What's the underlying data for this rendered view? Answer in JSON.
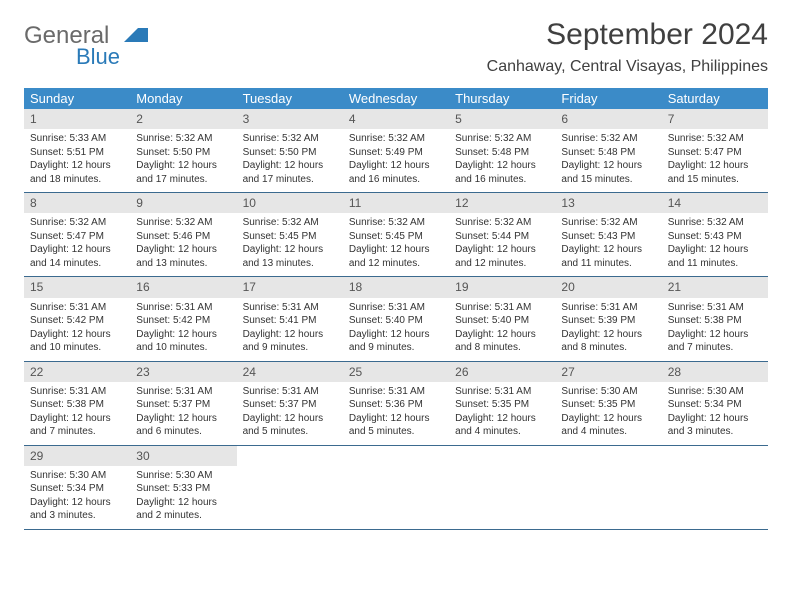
{
  "logo": {
    "text1": "General",
    "text2": "Blue"
  },
  "title": "September 2024",
  "location": "Canhaway, Central Visayas, Philippines",
  "colors": {
    "header_bg": "#3b8bc8",
    "header_fg": "#ffffff",
    "daynum_bg": "#e6e6e6",
    "row_border": "#3b6a8f",
    "text": "#333333",
    "logo_gray": "#6a6a6a",
    "logo_blue": "#2a7ab8"
  },
  "typography": {
    "title_fontsize": 30,
    "location_fontsize": 16,
    "dayheader_fontsize": 13,
    "cell_fontsize": 10,
    "daynum_fontsize": 12
  },
  "day_names": [
    "Sunday",
    "Monday",
    "Tuesday",
    "Wednesday",
    "Thursday",
    "Friday",
    "Saturday"
  ],
  "weeks": [
    [
      {
        "num": "1",
        "sunrise": "Sunrise: 5:33 AM",
        "sunset": "Sunset: 5:51 PM",
        "daylight": "Daylight: 12 hours and 18 minutes."
      },
      {
        "num": "2",
        "sunrise": "Sunrise: 5:32 AM",
        "sunset": "Sunset: 5:50 PM",
        "daylight": "Daylight: 12 hours and 17 minutes."
      },
      {
        "num": "3",
        "sunrise": "Sunrise: 5:32 AM",
        "sunset": "Sunset: 5:50 PM",
        "daylight": "Daylight: 12 hours and 17 minutes."
      },
      {
        "num": "4",
        "sunrise": "Sunrise: 5:32 AM",
        "sunset": "Sunset: 5:49 PM",
        "daylight": "Daylight: 12 hours and 16 minutes."
      },
      {
        "num": "5",
        "sunrise": "Sunrise: 5:32 AM",
        "sunset": "Sunset: 5:48 PM",
        "daylight": "Daylight: 12 hours and 16 minutes."
      },
      {
        "num": "6",
        "sunrise": "Sunrise: 5:32 AM",
        "sunset": "Sunset: 5:48 PM",
        "daylight": "Daylight: 12 hours and 15 minutes."
      },
      {
        "num": "7",
        "sunrise": "Sunrise: 5:32 AM",
        "sunset": "Sunset: 5:47 PM",
        "daylight": "Daylight: 12 hours and 15 minutes."
      }
    ],
    [
      {
        "num": "8",
        "sunrise": "Sunrise: 5:32 AM",
        "sunset": "Sunset: 5:47 PM",
        "daylight": "Daylight: 12 hours and 14 minutes."
      },
      {
        "num": "9",
        "sunrise": "Sunrise: 5:32 AM",
        "sunset": "Sunset: 5:46 PM",
        "daylight": "Daylight: 12 hours and 13 minutes."
      },
      {
        "num": "10",
        "sunrise": "Sunrise: 5:32 AM",
        "sunset": "Sunset: 5:45 PM",
        "daylight": "Daylight: 12 hours and 13 minutes."
      },
      {
        "num": "11",
        "sunrise": "Sunrise: 5:32 AM",
        "sunset": "Sunset: 5:45 PM",
        "daylight": "Daylight: 12 hours and 12 minutes."
      },
      {
        "num": "12",
        "sunrise": "Sunrise: 5:32 AM",
        "sunset": "Sunset: 5:44 PM",
        "daylight": "Daylight: 12 hours and 12 minutes."
      },
      {
        "num": "13",
        "sunrise": "Sunrise: 5:32 AM",
        "sunset": "Sunset: 5:43 PM",
        "daylight": "Daylight: 12 hours and 11 minutes."
      },
      {
        "num": "14",
        "sunrise": "Sunrise: 5:32 AM",
        "sunset": "Sunset: 5:43 PM",
        "daylight": "Daylight: 12 hours and 11 minutes."
      }
    ],
    [
      {
        "num": "15",
        "sunrise": "Sunrise: 5:31 AM",
        "sunset": "Sunset: 5:42 PM",
        "daylight": "Daylight: 12 hours and 10 minutes."
      },
      {
        "num": "16",
        "sunrise": "Sunrise: 5:31 AM",
        "sunset": "Sunset: 5:42 PM",
        "daylight": "Daylight: 12 hours and 10 minutes."
      },
      {
        "num": "17",
        "sunrise": "Sunrise: 5:31 AM",
        "sunset": "Sunset: 5:41 PM",
        "daylight": "Daylight: 12 hours and 9 minutes."
      },
      {
        "num": "18",
        "sunrise": "Sunrise: 5:31 AM",
        "sunset": "Sunset: 5:40 PM",
        "daylight": "Daylight: 12 hours and 9 minutes."
      },
      {
        "num": "19",
        "sunrise": "Sunrise: 5:31 AM",
        "sunset": "Sunset: 5:40 PM",
        "daylight": "Daylight: 12 hours and 8 minutes."
      },
      {
        "num": "20",
        "sunrise": "Sunrise: 5:31 AM",
        "sunset": "Sunset: 5:39 PM",
        "daylight": "Daylight: 12 hours and 8 minutes."
      },
      {
        "num": "21",
        "sunrise": "Sunrise: 5:31 AM",
        "sunset": "Sunset: 5:38 PM",
        "daylight": "Daylight: 12 hours and 7 minutes."
      }
    ],
    [
      {
        "num": "22",
        "sunrise": "Sunrise: 5:31 AM",
        "sunset": "Sunset: 5:38 PM",
        "daylight": "Daylight: 12 hours and 7 minutes."
      },
      {
        "num": "23",
        "sunrise": "Sunrise: 5:31 AM",
        "sunset": "Sunset: 5:37 PM",
        "daylight": "Daylight: 12 hours and 6 minutes."
      },
      {
        "num": "24",
        "sunrise": "Sunrise: 5:31 AM",
        "sunset": "Sunset: 5:37 PM",
        "daylight": "Daylight: 12 hours and 5 minutes."
      },
      {
        "num": "25",
        "sunrise": "Sunrise: 5:31 AM",
        "sunset": "Sunset: 5:36 PM",
        "daylight": "Daylight: 12 hours and 5 minutes."
      },
      {
        "num": "26",
        "sunrise": "Sunrise: 5:31 AM",
        "sunset": "Sunset: 5:35 PM",
        "daylight": "Daylight: 12 hours and 4 minutes."
      },
      {
        "num": "27",
        "sunrise": "Sunrise: 5:30 AM",
        "sunset": "Sunset: 5:35 PM",
        "daylight": "Daylight: 12 hours and 4 minutes."
      },
      {
        "num": "28",
        "sunrise": "Sunrise: 5:30 AM",
        "sunset": "Sunset: 5:34 PM",
        "daylight": "Daylight: 12 hours and 3 minutes."
      }
    ],
    [
      {
        "num": "29",
        "sunrise": "Sunrise: 5:30 AM",
        "sunset": "Sunset: 5:34 PM",
        "daylight": "Daylight: 12 hours and 3 minutes."
      },
      {
        "num": "30",
        "sunrise": "Sunrise: 5:30 AM",
        "sunset": "Sunset: 5:33 PM",
        "daylight": "Daylight: 12 hours and 2 minutes."
      },
      null,
      null,
      null,
      null,
      null
    ]
  ]
}
